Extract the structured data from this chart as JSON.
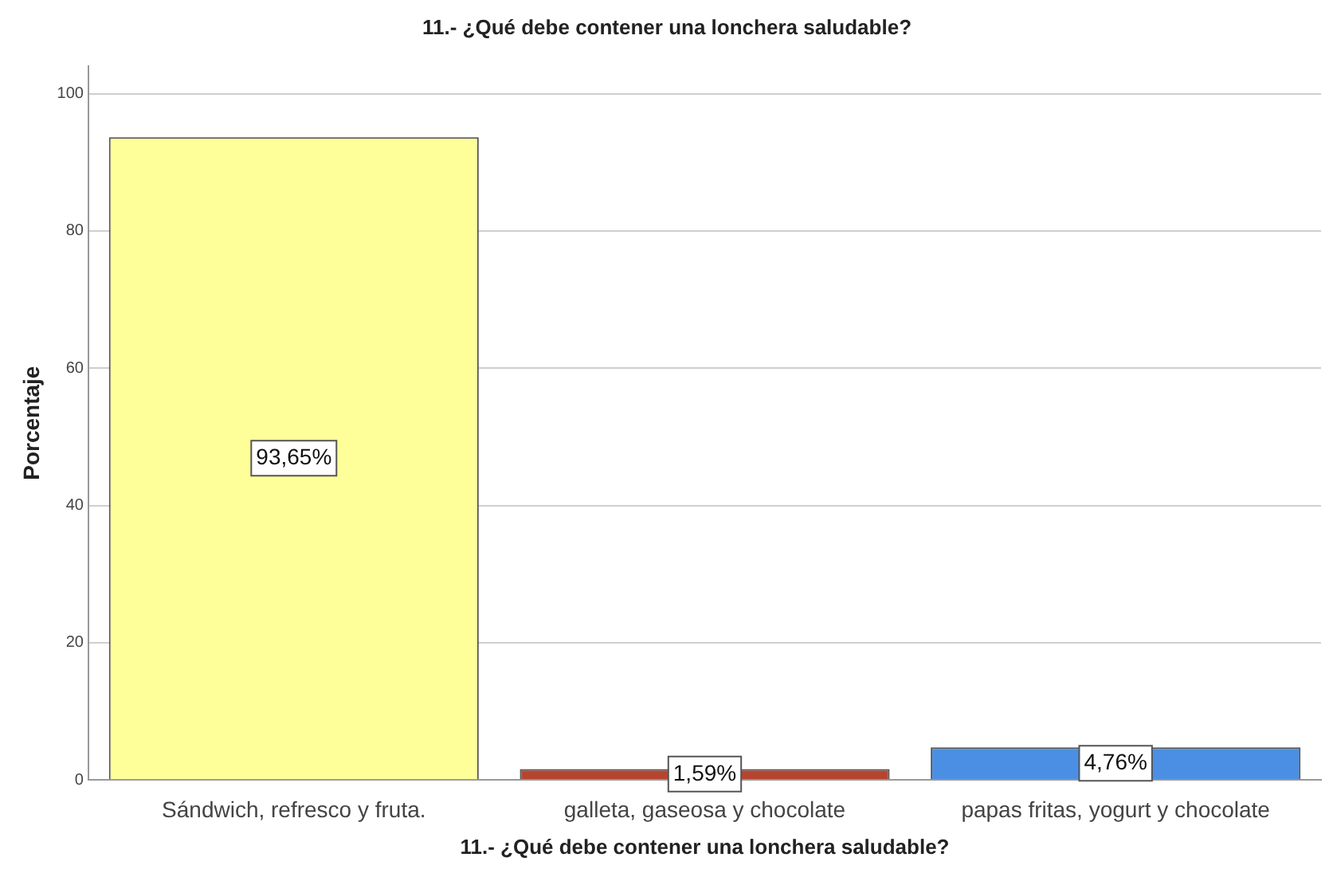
{
  "chart_data": {
    "type": "bar",
    "title": "11.- ¿Qué debe contener una lonchera saludable?",
    "xlabel": "11.- ¿Qué debe contener una lonchera saludable?",
    "ylabel": "Porcentaje",
    "categories": [
      "Sándwich, refresco y fruta.",
      "galleta, gaseosa y chocolate",
      "papas fritas, yogurt y chocolate"
    ],
    "values": [
      93.65,
      1.59,
      4.76
    ],
    "colors": [
      "#ffff99",
      "#b5452f",
      "#4a8fe3"
    ],
    "value_labels": [
      "93,65%",
      "1,59%",
      "4,76%"
    ],
    "ylim": [
      0,
      104
    ],
    "yticks": [
      0,
      20,
      40,
      60,
      80,
      100
    ],
    "grid": "y",
    "legend": false
  }
}
